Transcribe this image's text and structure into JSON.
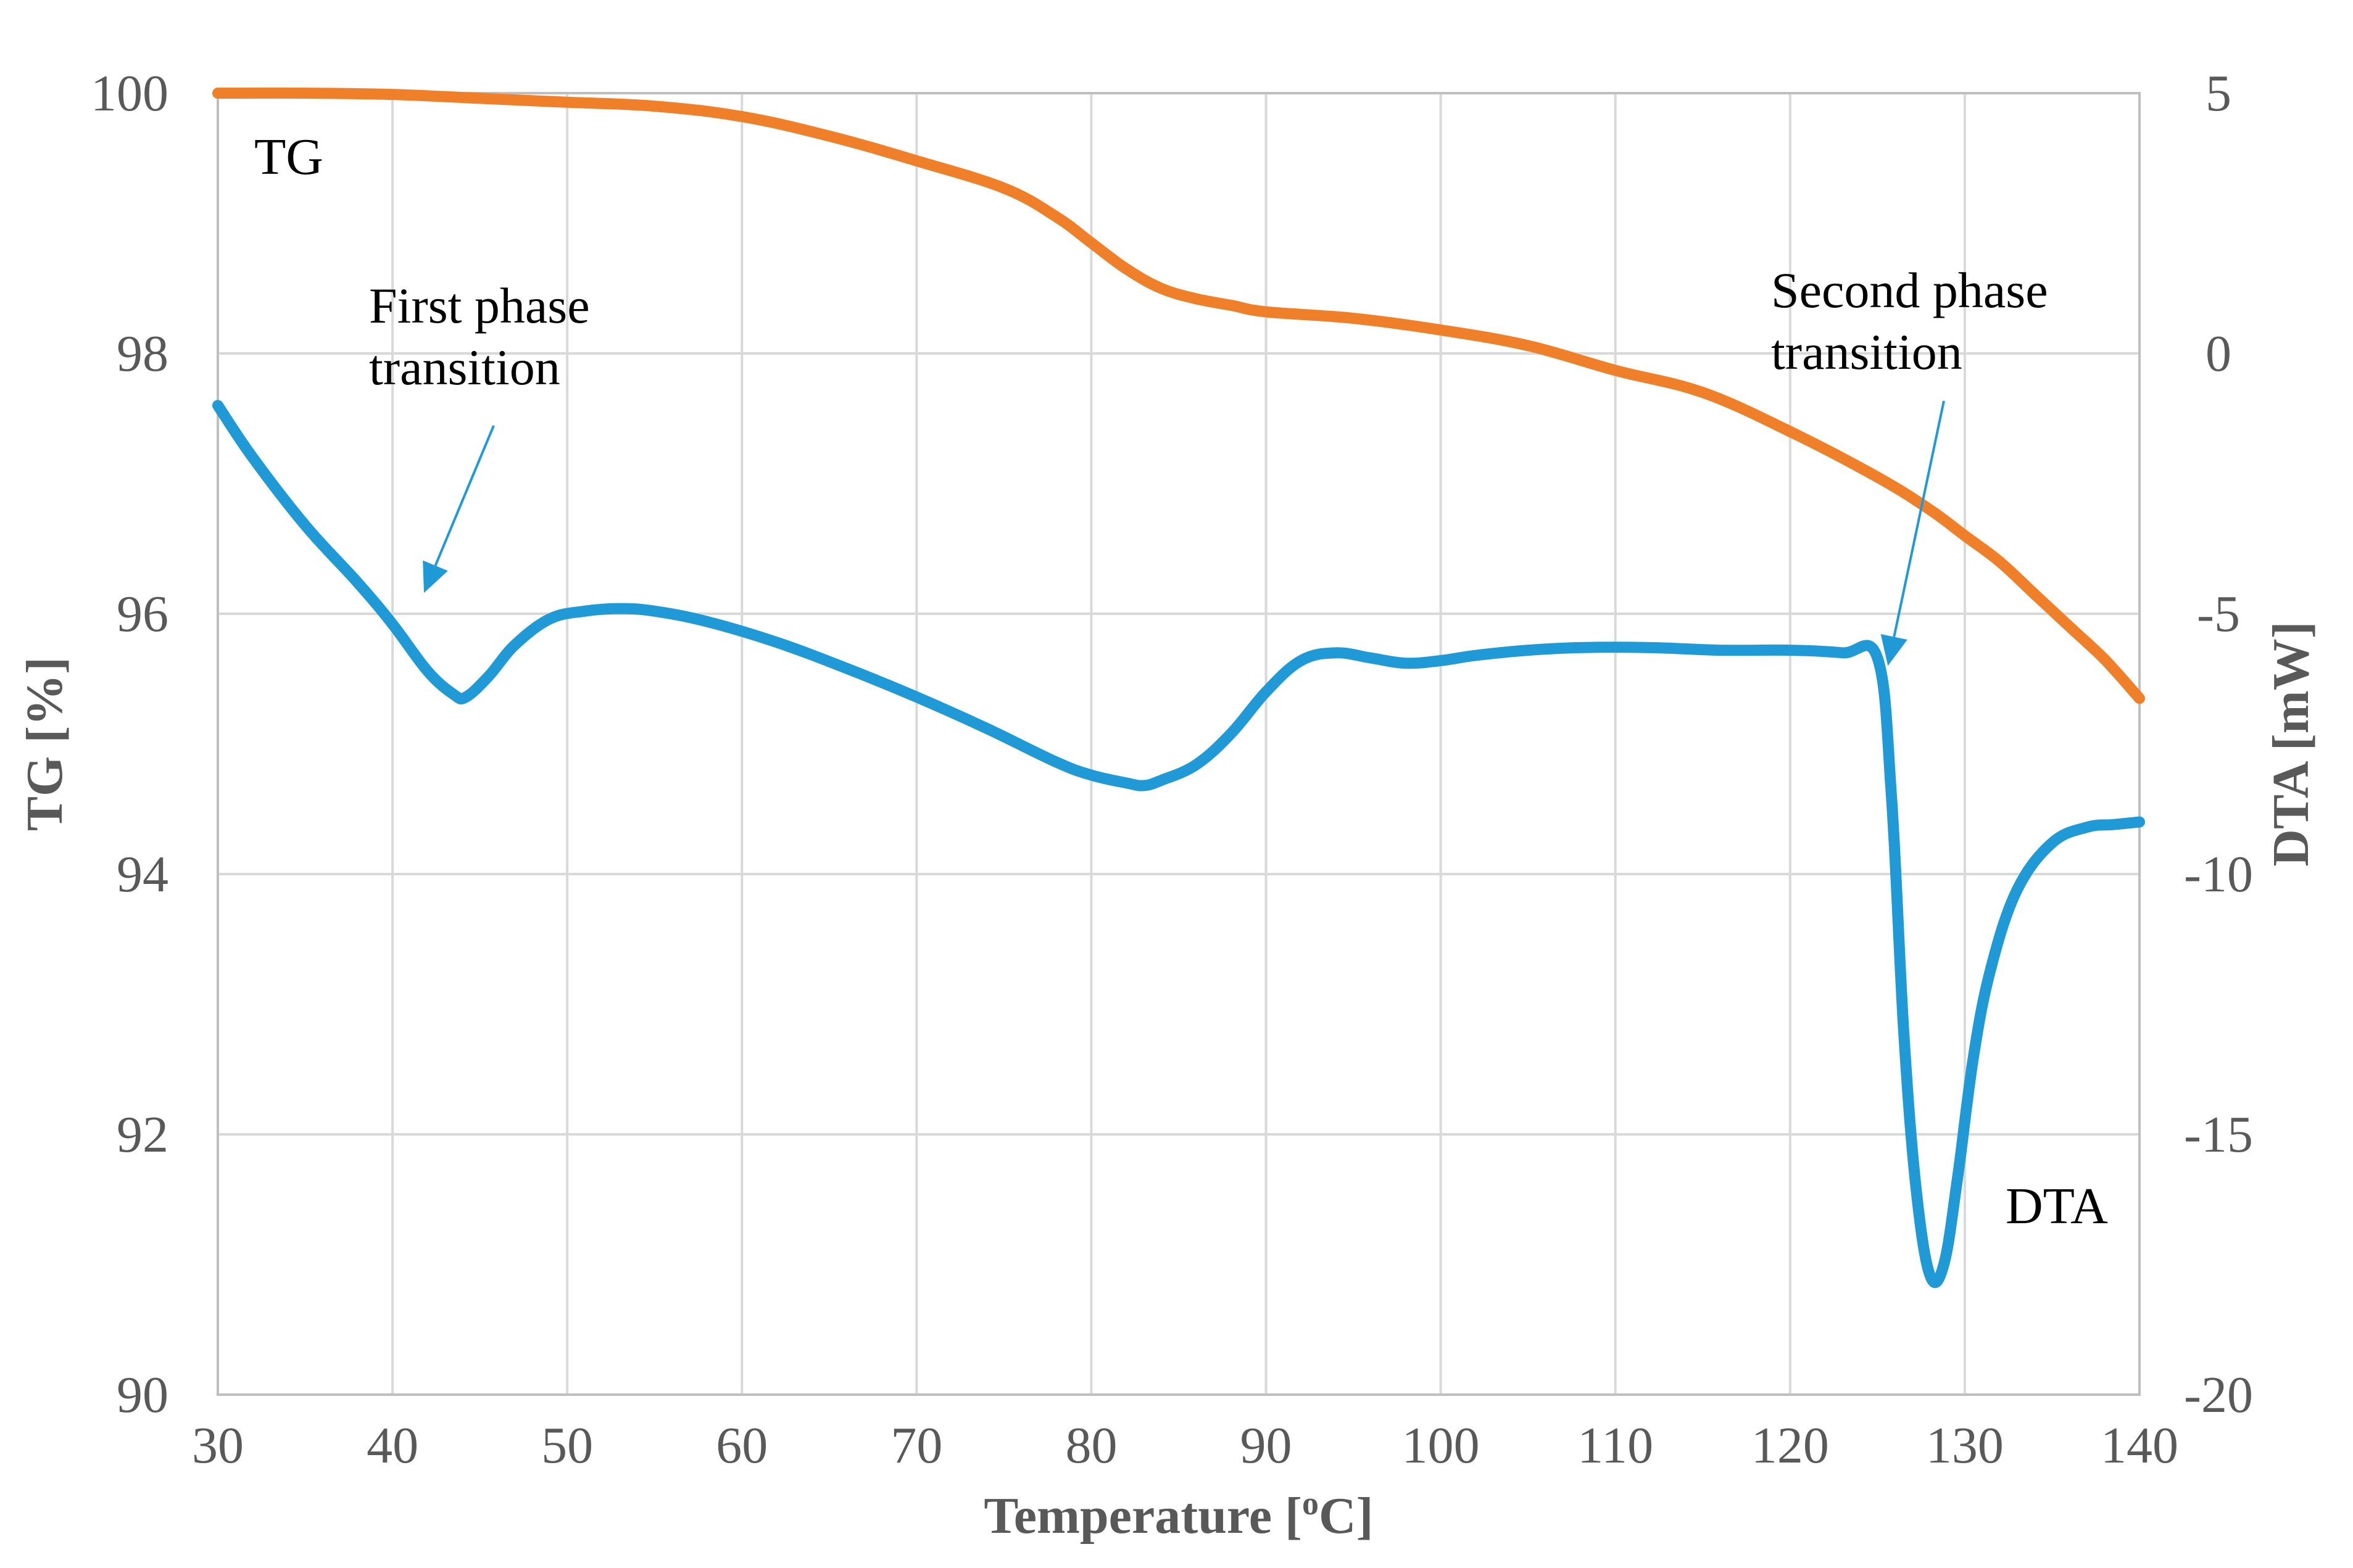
{
  "chart_data": {
    "type": "line",
    "title": "",
    "xlabel": "Temperature [",
    "xlabel_sup": "o",
    "xlabel_end": "C]",
    "ylabel_left": "TG [%]",
    "ylabel_right": "DTA [mW]",
    "xlim": [
      30,
      140
    ],
    "ylim_left": [
      90,
      100
    ],
    "ylim_right": [
      -20,
      5
    ],
    "x_ticks": [
      "30",
      "40",
      "50",
      "60",
      "70",
      "80",
      "90",
      "100",
      "110",
      "120",
      "130",
      "140"
    ],
    "y_left_ticks": [
      "90",
      "92",
      "94",
      "96",
      "98",
      "100"
    ],
    "y_right_ticks": [
      "-20",
      "-15",
      "-10",
      "-5",
      "0",
      "5"
    ],
    "grid": true,
    "colors": {
      "TG": "#f07f2a",
      "DTA": "#1f9ad6"
    },
    "series_labels": {
      "TG": "TG",
      "DTA": "DTA"
    },
    "series": [
      {
        "name": "TG",
        "axis": "left",
        "x": [
          30,
          35,
          40,
          45,
          50,
          55,
          60,
          65,
          70,
          75,
          78,
          80,
          82,
          84,
          86,
          88,
          90,
          95,
          100,
          105,
          110,
          115,
          120,
          125,
          128,
          130,
          132,
          134,
          136,
          138,
          140
        ],
        "y": [
          100.0,
          100.0,
          99.99,
          99.96,
          99.93,
          99.9,
          99.82,
          99.67,
          99.48,
          99.27,
          99.05,
          98.85,
          98.65,
          98.5,
          98.42,
          98.37,
          98.32,
          98.27,
          98.18,
          98.06,
          97.87,
          97.7,
          97.4,
          97.05,
          96.8,
          96.6,
          96.4,
          96.15,
          95.9,
          95.65,
          95.35
        ]
      },
      {
        "name": "DTA",
        "axis": "right",
        "x": [
          30,
          32,
          35,
          38,
          40,
          42,
          43.5,
          44.2,
          45.5,
          47,
          49,
          51,
          53,
          55,
          58,
          62,
          66,
          70,
          74,
          78,
          80,
          82,
          83,
          84,
          86,
          88,
          90,
          92,
          94,
          96,
          98,
          100,
          102,
          105,
          108,
          112,
          116,
          120,
          123,
          125,
          125.8,
          126.5,
          127.2,
          128,
          128.8,
          129.6,
          130.5,
          131.5,
          133,
          135,
          137,
          138.5,
          140
        ],
        "y": [
          -1.0,
          -2.0,
          -3.3,
          -4.4,
          -5.2,
          -6.1,
          -6.55,
          -6.6,
          -6.2,
          -5.6,
          -5.1,
          -4.95,
          -4.9,
          -4.95,
          -5.15,
          -5.55,
          -6.05,
          -6.6,
          -7.2,
          -7.85,
          -8.1,
          -8.25,
          -8.3,
          -8.2,
          -7.9,
          -7.3,
          -6.5,
          -5.9,
          -5.75,
          -5.85,
          -5.95,
          -5.9,
          -5.8,
          -5.7,
          -5.65,
          -5.65,
          -5.7,
          -5.7,
          -5.75,
          -5.85,
          -8.5,
          -13.0,
          -16.0,
          -17.7,
          -17.5,
          -15.8,
          -13.5,
          -11.8,
          -10.3,
          -9.4,
          -9.1,
          -9.05,
          -9.0
        ]
      }
    ],
    "annotations": [
      {
        "lines": [
          "First phase",
          "transition"
        ],
        "arrow_to_x": 41.8,
        "arrow_to_y_right": -4.6
      },
      {
        "lines": [
          "Second phase",
          "transition"
        ],
        "arrow_to_x": 125.6,
        "arrow_to_y_right": -6.0
      }
    ]
  }
}
